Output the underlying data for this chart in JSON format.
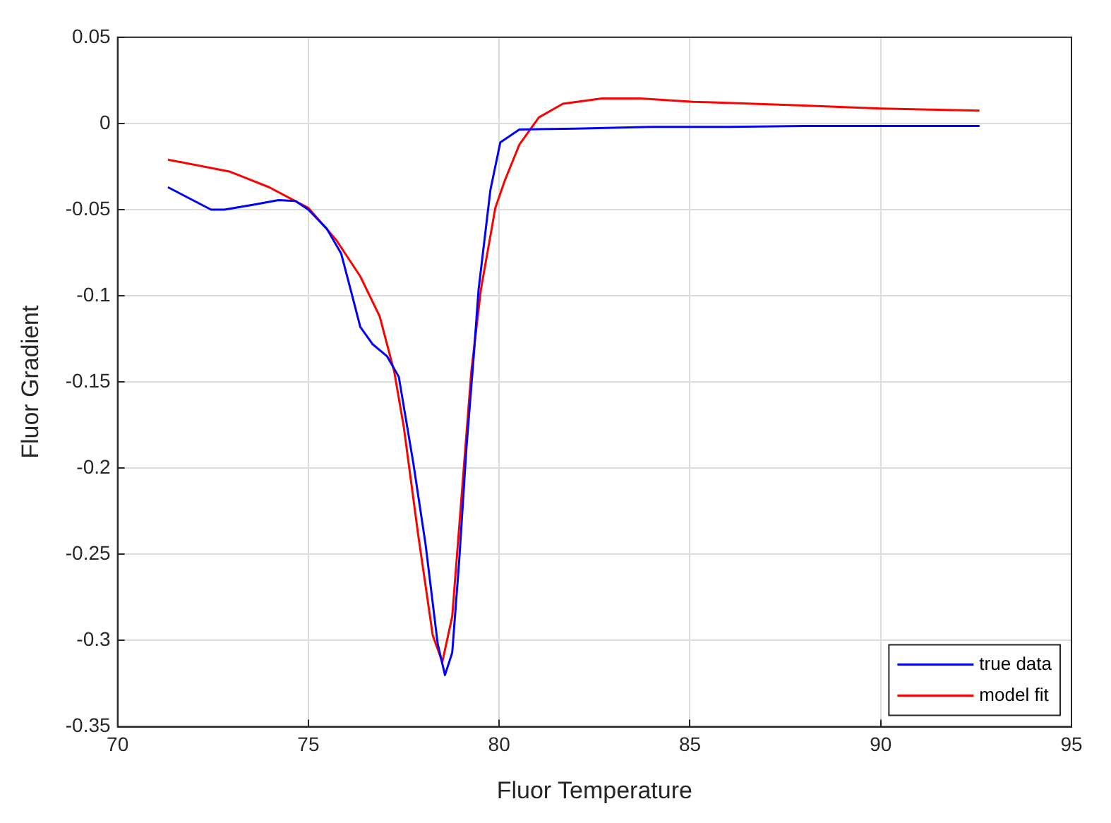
{
  "chart_data": {
    "type": "line",
    "xlabel": "Fluor Temperature",
    "ylabel": "Fluor Gradient",
    "xlim": [
      70,
      95
    ],
    "xticks": [
      70,
      75,
      80,
      85,
      90,
      95
    ],
    "ylim": [
      -0.35,
      0.05
    ],
    "yticks": [
      -0.35,
      -0.3,
      -0.25,
      -0.2,
      -0.15,
      -0.1,
      -0.05,
      0,
      0.05
    ],
    "grid": true,
    "legend": "bottom right",
    "marker": "none",
    "line_style": "solid",
    "series": [
      {
        "name": "true data",
        "color": "#0000ff",
        "x": [
          71.32,
          72.45,
          72.8,
          73.59,
          74.22,
          74.66,
          75.0,
          75.48,
          75.86,
          76.11,
          76.36,
          76.68,
          77.06,
          77.37,
          77.75,
          78.07,
          78.39,
          78.58,
          78.77,
          78.95,
          79.14,
          79.33,
          79.46,
          79.77,
          80.03,
          80.53,
          82.0,
          84.0,
          86.0,
          88.0,
          90.0,
          92.59
        ],
        "values": [
          -0.037,
          -0.05,
          -0.05,
          -0.047,
          -0.0445,
          -0.045,
          -0.05,
          -0.061,
          -0.0755,
          -0.0966,
          -0.118,
          -0.128,
          -0.135,
          -0.147,
          -0.197,
          -0.244,
          -0.302,
          -0.32,
          -0.307,
          -0.2546,
          -0.189,
          -0.136,
          -0.0966,
          -0.0387,
          -0.011,
          -0.0035,
          -0.003,
          -0.002,
          -0.002,
          -0.0015,
          -0.0015,
          -0.0015
        ]
      },
      {
        "name": "model fit",
        "color": "#ff0000",
        "x": [
          71.32,
          72.95,
          73.97,
          75.0,
          75.73,
          76.36,
          76.87,
          77.25,
          77.5,
          77.88,
          78.26,
          78.51,
          78.77,
          79.02,
          79.27,
          79.52,
          79.9,
          80.15,
          80.53,
          81.04,
          81.67,
          82.69,
          83.7,
          85.08,
          87.73,
          90.0,
          92.59
        ],
        "values": [
          -0.021,
          -0.028,
          -0.037,
          -0.049,
          -0.0676,
          -0.0887,
          -0.112,
          -0.144,
          -0.176,
          -0.239,
          -0.297,
          -0.3125,
          -0.286,
          -0.215,
          -0.144,
          -0.0966,
          -0.049,
          -0.033,
          -0.0123,
          0.0035,
          0.0114,
          0.0145,
          0.0145,
          0.0126,
          0.0106,
          0.0087,
          0.0074
        ]
      }
    ]
  }
}
